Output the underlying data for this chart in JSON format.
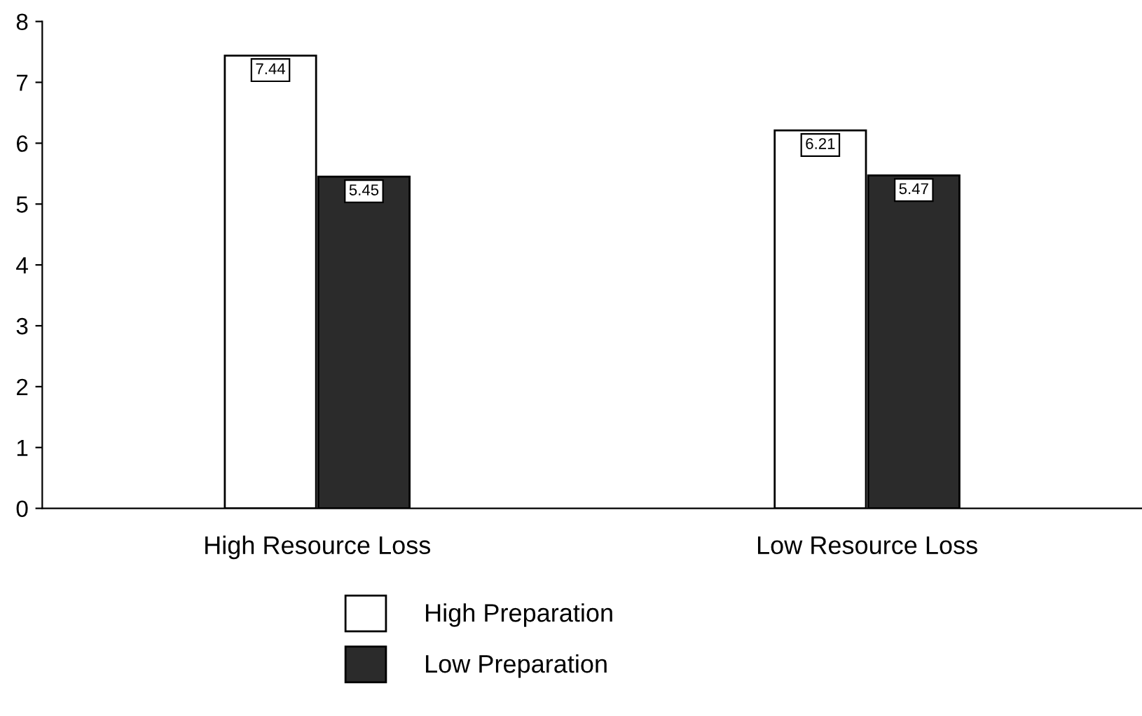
{
  "chart_data": {
    "type": "bar",
    "categories": [
      "High Resource Loss",
      "Low Resource Loss"
    ],
    "series": [
      {
        "name": "High Preparation",
        "color": "#ffffff",
        "values": [
          7.44,
          6.21
        ]
      },
      {
        "name": "Low Preparation",
        "color": "#2b2b2b",
        "values": [
          5.45,
          5.47
        ]
      }
    ],
    "ylim": [
      0,
      8
    ],
    "yticks": [
      0,
      1,
      2,
      3,
      4,
      5,
      6,
      7,
      8
    ],
    "grid": false,
    "legend": "bottom",
    "data_labels": true
  }
}
